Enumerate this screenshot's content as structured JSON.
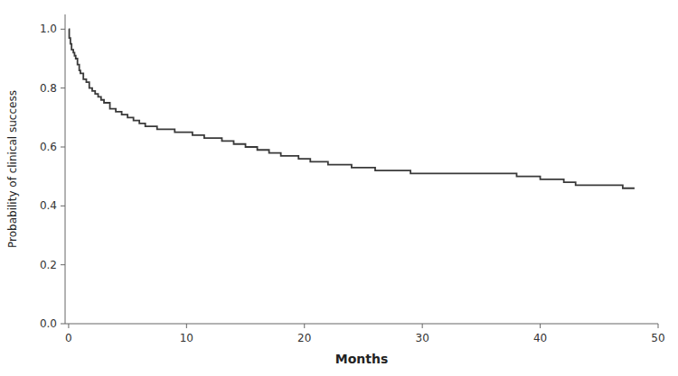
{
  "chart_data": {
    "type": "step",
    "xlabel": "Months",
    "ylabel": "Probability of clinical success",
    "x": [
      0,
      0.05,
      0.15,
      0.25,
      0.4,
      0.5,
      0.6,
      0.75,
      0.9,
      1.0,
      1.25,
      1.5,
      1.75,
      2.0,
      2.25,
      2.5,
      2.75,
      3.0,
      3.5,
      4.0,
      4.5,
      5.0,
      5.5,
      6.0,
      6.5,
      7.0,
      7.5,
      8.0,
      9.0,
      10.0,
      10.5,
      11.0,
      11.5,
      12.0,
      13.0,
      13.5,
      14.0,
      15.0,
      15.5,
      16.0,
      16.5,
      17.0,
      17.5,
      18.0,
      18.5,
      19.0,
      19.5,
      20.0,
      20.5,
      21.0,
      21.5,
      22.0,
      22.5,
      23.0,
      23.5,
      24.0,
      25.0,
      25.5,
      26.0,
      27.0,
      27.5,
      28.0,
      29.0,
      30.0,
      31.0,
      32.0,
      33.0,
      34.0,
      35.0,
      36.0,
      37.0,
      38.0,
      39.0,
      40.0,
      41.0,
      42.0,
      42.5,
      43.0,
      44.0,
      45.0,
      46.0,
      47.0,
      48.0
    ],
    "values": [
      1.0,
      0.97,
      0.95,
      0.93,
      0.92,
      0.91,
      0.9,
      0.88,
      0.86,
      0.85,
      0.83,
      0.82,
      0.8,
      0.79,
      0.78,
      0.77,
      0.76,
      0.75,
      0.73,
      0.72,
      0.71,
      0.7,
      0.69,
      0.68,
      0.67,
      0.67,
      0.66,
      0.66,
      0.65,
      0.65,
      0.64,
      0.64,
      0.63,
      0.63,
      0.62,
      0.62,
      0.61,
      0.6,
      0.6,
      0.59,
      0.59,
      0.58,
      0.58,
      0.57,
      0.57,
      0.57,
      0.56,
      0.56,
      0.55,
      0.55,
      0.55,
      0.54,
      0.54,
      0.54,
      0.54,
      0.53,
      0.53,
      0.53,
      0.52,
      0.52,
      0.52,
      0.52,
      0.51,
      0.51,
      0.51,
      0.51,
      0.51,
      0.51,
      0.51,
      0.51,
      0.51,
      0.5,
      0.5,
      0.49,
      0.49,
      0.48,
      0.48,
      0.47,
      0.47,
      0.47,
      0.47,
      0.46,
      0.46
    ],
    "color": "#3a3a3a",
    "xlim": [
      -0.3,
      50
    ],
    "ylim": [
      0.0,
      1.05
    ],
    "xticks": [
      0,
      10,
      20,
      30,
      40,
      50
    ],
    "yticks": [
      {
        "value": 0.0,
        "label": "0.0"
      },
      0.2,
      0.4,
      0.6,
      0.8,
      {
        "value": 1.0,
        "label": "1.0"
      }
    ],
    "grid": false
  }
}
